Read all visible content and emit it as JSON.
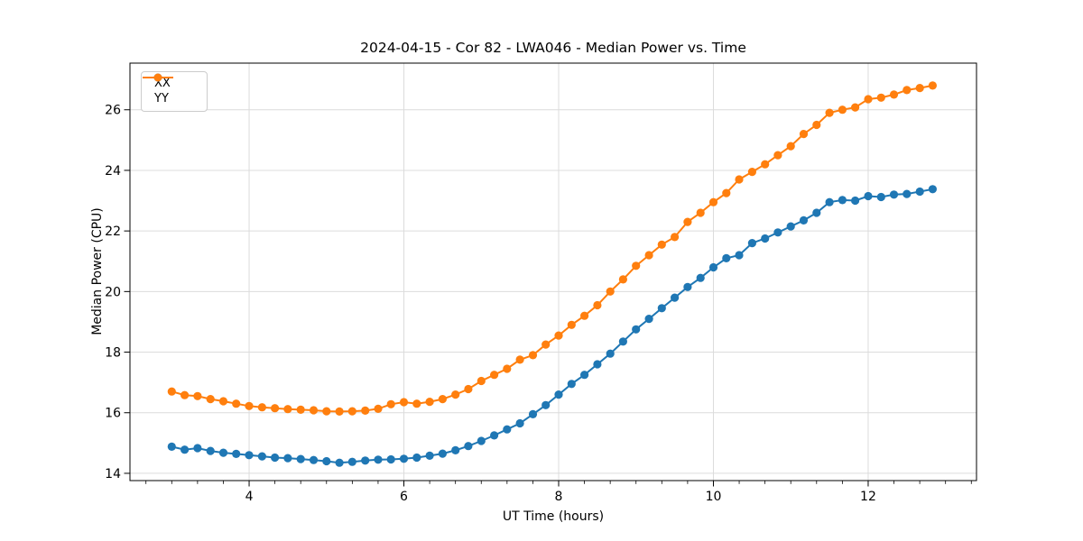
{
  "figure": {
    "title": "2024-04-15 - Cor 82 - LWA046 - Median Power vs. Time",
    "xlabel": "UT Time (hours)",
    "ylabel": "Median Power (CPU)"
  },
  "legend": {
    "position": "upper left",
    "items": [
      {
        "label": "XX",
        "color": "#1f77b4"
      },
      {
        "label": "YY",
        "color": "#ff7f0e"
      }
    ]
  },
  "chart_data": {
    "type": "line",
    "title": "2024-04-15 - Cor 82 - LWA046 - Median Power vs. Time",
    "xlabel": "UT Time (hours)",
    "ylabel": "Median Power (CPU)",
    "xlim": [
      2.46,
      13.4
    ],
    "ylim": [
      13.76,
      27.54
    ],
    "xticks": [
      4,
      6,
      8,
      10,
      12
    ],
    "yticks": [
      14,
      16,
      18,
      20,
      22,
      24,
      26
    ],
    "x_minor_step": 0.33333,
    "grid": true,
    "grid_color": "#dcdcdc",
    "legend_position": "upper left",
    "marker": "circle",
    "x": [
      3.0,
      3.167,
      3.333,
      3.5,
      3.667,
      3.833,
      4.0,
      4.167,
      4.333,
      4.5,
      4.667,
      4.833,
      5.0,
      5.167,
      5.333,
      5.5,
      5.667,
      5.833,
      6.0,
      6.167,
      6.333,
      6.5,
      6.667,
      6.833,
      7.0,
      7.167,
      7.333,
      7.5,
      7.667,
      7.833,
      8.0,
      8.167,
      8.333,
      8.5,
      8.667,
      8.833,
      9.0,
      9.167,
      9.333,
      9.5,
      9.667,
      9.833,
      10.0,
      10.167,
      10.333,
      10.5,
      10.667,
      10.833,
      11.0,
      11.167,
      11.333,
      11.5,
      11.667,
      11.833,
      12.0,
      12.167,
      12.333,
      12.5,
      12.667,
      12.833
    ],
    "series": [
      {
        "name": "XX",
        "color": "#1f77b4",
        "values": [
          14.88,
          14.78,
          14.83,
          14.74,
          14.68,
          14.64,
          14.6,
          14.56,
          14.52,
          14.5,
          14.47,
          14.44,
          14.4,
          14.35,
          14.38,
          14.42,
          14.45,
          14.46,
          14.48,
          14.52,
          14.58,
          14.65,
          14.76,
          14.9,
          15.07,
          15.25,
          15.45,
          15.65,
          15.95,
          16.25,
          16.6,
          16.95,
          17.25,
          17.6,
          17.95,
          18.35,
          18.75,
          19.1,
          19.45,
          19.8,
          20.15,
          20.45,
          20.8,
          21.1,
          21.2,
          21.6,
          21.75,
          21.95,
          22.15,
          22.35,
          22.6,
          22.95,
          23.02,
          23.0,
          23.15,
          23.12,
          23.2,
          23.22,
          23.3,
          23.38
        ]
      },
      {
        "name": "YY",
        "color": "#ff7f0e",
        "values": [
          16.7,
          16.58,
          16.55,
          16.45,
          16.38,
          16.3,
          16.22,
          16.18,
          16.15,
          16.12,
          16.1,
          16.08,
          16.05,
          16.04,
          16.05,
          16.07,
          16.13,
          16.28,
          16.35,
          16.3,
          16.36,
          16.45,
          16.6,
          16.78,
          17.05,
          17.25,
          17.45,
          17.75,
          17.9,
          18.25,
          18.55,
          18.9,
          19.2,
          19.55,
          20.0,
          20.4,
          20.85,
          21.2,
          21.55,
          21.8,
          22.3,
          22.6,
          22.95,
          23.25,
          23.7,
          23.95,
          24.2,
          24.5,
          24.8,
          25.2,
          25.5,
          25.9,
          26.0,
          26.08,
          26.35,
          26.4,
          26.5,
          26.65,
          26.72,
          26.8
        ]
      }
    ]
  }
}
